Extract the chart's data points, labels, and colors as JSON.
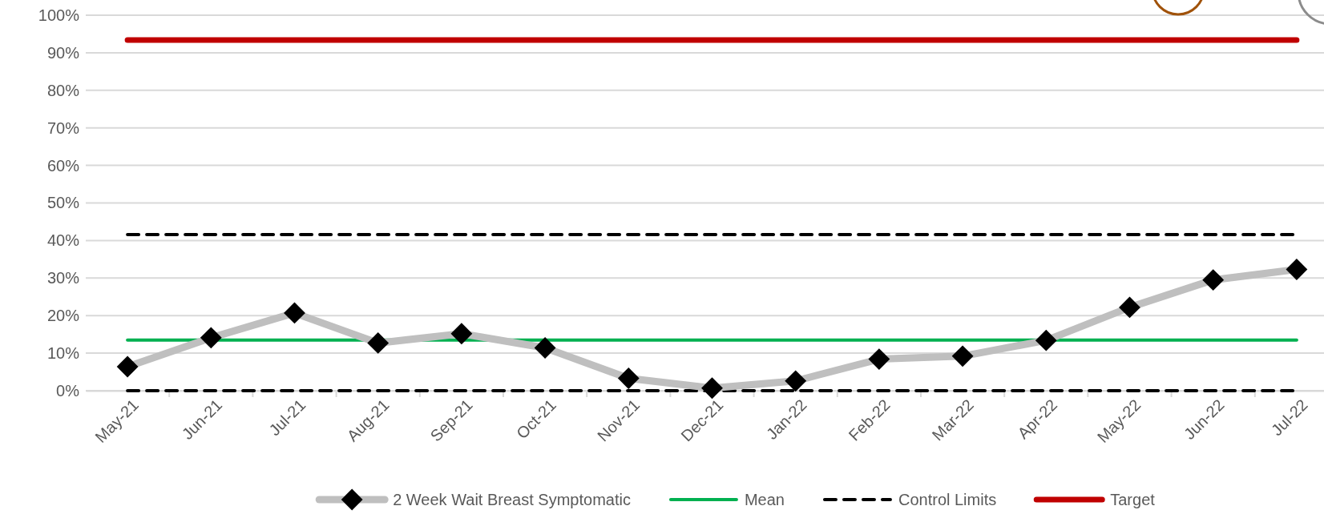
{
  "chart_data": {
    "type": "line",
    "categories": [
      "May-21",
      "Jun-21",
      "Jul-21",
      "Aug-21",
      "Sep-21",
      "Oct-21",
      "Nov-21",
      "Dec-21",
      "Jan-22",
      "Feb-22",
      "Mar-22",
      "Apr-22",
      "May-22",
      "Jun-22",
      "Jul-22"
    ],
    "series": [
      {
        "name": "2 Week Wait Breast Symptomatic",
        "color": "#bfbfbf",
        "values": [
          0.064,
          0.141,
          0.207,
          0.127,
          0.152,
          0.114,
          0.033,
          0.007,
          0.026,
          0.084,
          0.092,
          0.134,
          0.222,
          0.295,
          0.323
        ]
      }
    ],
    "marker": "diamond",
    "line_style": "solid",
    "ylim": [
      0,
      1
    ],
    "yticks": [
      {
        "value": 0,
        "label": "0%"
      },
      {
        "value": 0.1,
        "label": "10%"
      },
      {
        "value": 0.2,
        "label": "20%"
      },
      {
        "value": 0.3,
        "label": "30%"
      },
      {
        "value": 0.4,
        "label": "40%"
      },
      {
        "value": 0.5,
        "label": "50%"
      },
      {
        "value": 0.6,
        "label": "60%"
      },
      {
        "value": 0.7,
        "label": "70%"
      },
      {
        "value": 0.8,
        "label": "80%"
      },
      {
        "value": 0.9,
        "label": "90%"
      },
      {
        "value": 1,
        "label": "100%"
      }
    ],
    "grid": "y",
    "legend": "bottom",
    "ref_lines": [
      {
        "axis": "y",
        "value": 0.135,
        "label": "Mean",
        "color": "#00b050",
        "line_style": "solid"
      },
      {
        "axis": "y",
        "value": 0.416,
        "label": "Control Limits",
        "color": "#000000",
        "line_style": "dashed"
      },
      {
        "axis": "y",
        "value": 0,
        "color": "#000000",
        "line_style": "dashed"
      },
      {
        "axis": "y",
        "value": 0.934,
        "label": "Target",
        "color": "#c00000",
        "line_style": "solid"
      }
    ]
  }
}
